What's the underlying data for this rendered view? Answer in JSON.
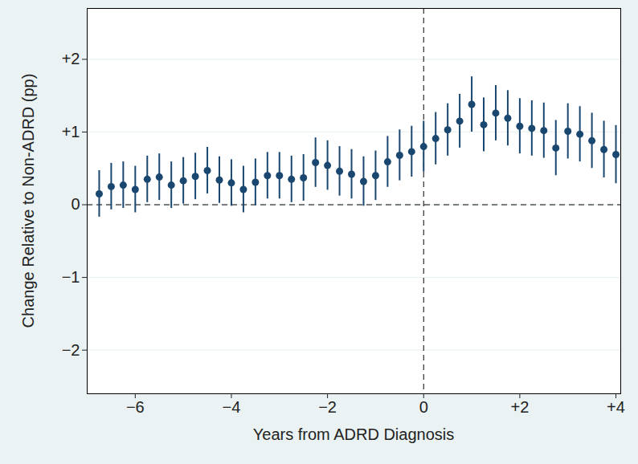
{
  "chart_data": {
    "type": "scatter",
    "x_label": "Years from ADRD Diagnosis",
    "y_label": "Change Relative to Non-ADRD (pp)",
    "x": [
      -6.75,
      -6.5,
      -6.25,
      -6,
      -5.75,
      -5.5,
      -5.25,
      -5,
      -4.75,
      -4.5,
      -4.25,
      -4,
      -3.75,
      -3.5,
      -3.25,
      -3,
      -2.75,
      -2.5,
      -2.25,
      -2,
      -1.75,
      -1.5,
      -1.25,
      -1,
      -0.75,
      -0.5,
      -0.25,
      0,
      0.25,
      0.5,
      0.75,
      1,
      1.25,
      1.5,
      1.75,
      2,
      2.25,
      2.5,
      2.75,
      3,
      3.25,
      3.5,
      3.75,
      4
    ],
    "values": [
      0.15,
      0.25,
      0.27,
      0.21,
      0.35,
      0.38,
      0.27,
      0.33,
      0.39,
      0.47,
      0.34,
      0.3,
      0.21,
      0.31,
      0.4,
      0.4,
      0.35,
      0.37,
      0.58,
      0.54,
      0.46,
      0.42,
      0.32,
      0.4,
      0.59,
      0.68,
      0.73,
      0.8,
      0.91,
      1.03,
      1.15,
      1.38,
      1.1,
      1.26,
      1.19,
      1.08,
      1.05,
      1.02,
      0.78,
      1.01,
      0.97,
      0.88,
      0.76,
      0.69
    ],
    "ci_lower": [
      -0.17,
      -0.07,
      -0.05,
      -0.11,
      0.03,
      0.06,
      -0.05,
      0.01,
      0.07,
      0.15,
      0.02,
      -0.02,
      -0.11,
      -0.01,
      0.08,
      0.08,
      0.03,
      0.05,
      0.24,
      0.2,
      0.12,
      0.08,
      -0.02,
      0.06,
      0.24,
      0.33,
      0.38,
      0.45,
      0.55,
      0.67,
      0.78,
      1.0,
      0.73,
      0.88,
      0.81,
      0.7,
      0.67,
      0.64,
      0.4,
      0.63,
      0.59,
      0.5,
      0.37,
      0.29
    ],
    "ci_upper": [
      0.47,
      0.57,
      0.59,
      0.53,
      0.67,
      0.7,
      0.59,
      0.65,
      0.71,
      0.79,
      0.66,
      0.62,
      0.53,
      0.63,
      0.72,
      0.72,
      0.67,
      0.69,
      0.92,
      0.88,
      0.8,
      0.76,
      0.66,
      0.74,
      0.94,
      1.03,
      1.08,
      1.15,
      1.27,
      1.39,
      1.52,
      1.76,
      1.47,
      1.64,
      1.57,
      1.46,
      1.43,
      1.4,
      1.16,
      1.39,
      1.35,
      1.26,
      1.15,
      1.09
    ],
    "color": "#1a476f",
    "marker": "circle",
    "xlim": [
      -7,
      4.1
    ],
    "ylim": [
      -2.6,
      2.7
    ],
    "xticks": [
      {
        "value": -6,
        "label": "−6"
      },
      {
        "value": -4,
        "label": "−4"
      },
      {
        "value": -2,
        "label": "−2"
      },
      0,
      {
        "value": 2,
        "label": "+2"
      },
      {
        "value": 4,
        "label": "+4"
      }
    ],
    "yticks": [
      {
        "value": -2,
        "label": "−2"
      },
      {
        "value": -1,
        "label": "−1"
      },
      0,
      {
        "value": 1,
        "label": "+1"
      },
      {
        "value": 2,
        "label": "+2"
      }
    ],
    "reference_lines": {
      "x": [
        0
      ],
      "y": [
        0
      ]
    },
    "grid": true
  }
}
